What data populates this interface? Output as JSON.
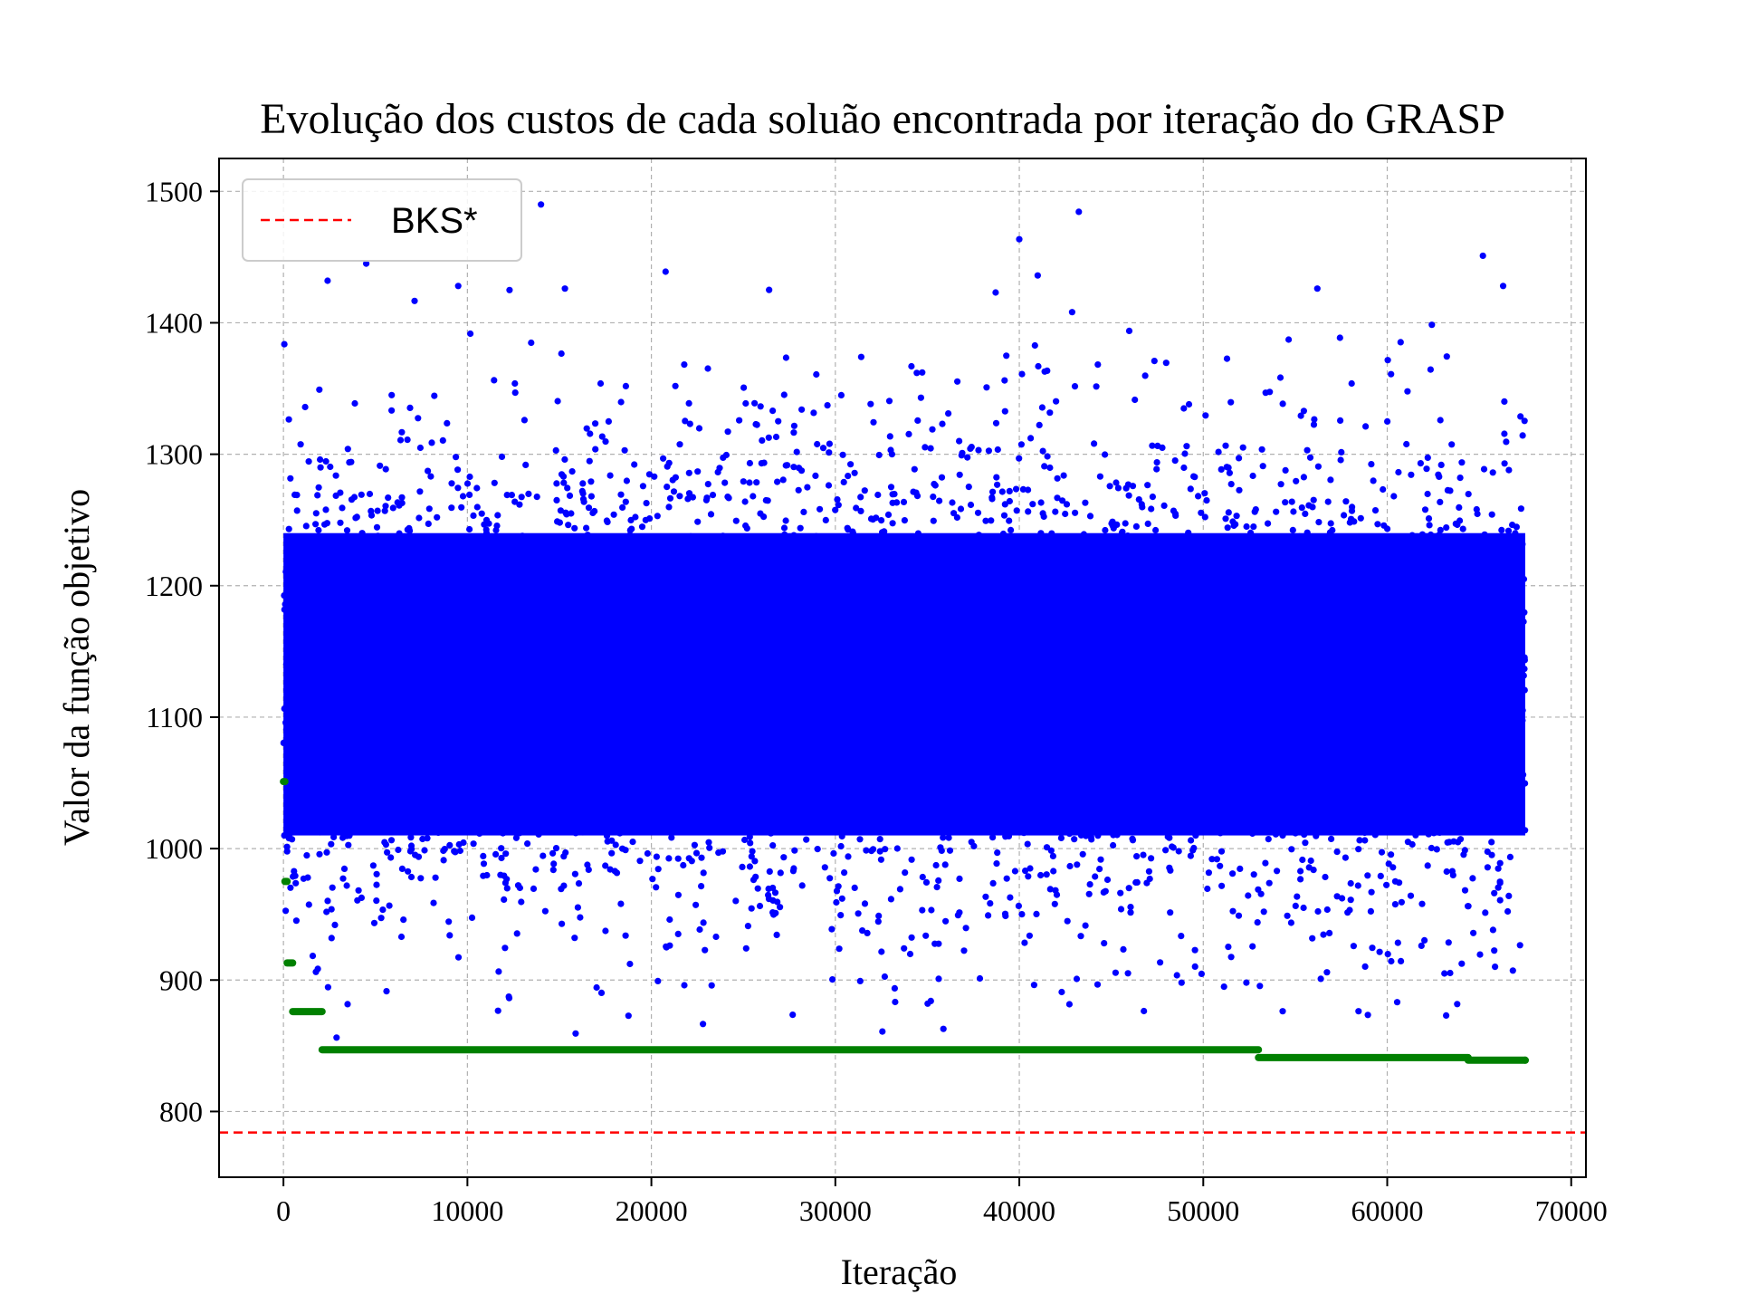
{
  "chart_data": {
    "type": "scatter",
    "title": "Evolução dos custos de cada soluão encontrada por iteração do GRASP",
    "xlabel": "Iteração",
    "ylabel": "Valor da função objetivo",
    "xlim": [
      -3500,
      70800
    ],
    "ylim": [
      750,
      1525
    ],
    "x_ticks": [
      0,
      10000,
      20000,
      30000,
      40000,
      50000,
      60000,
      70000
    ],
    "y_ticks": [
      800,
      900,
      1000,
      1100,
      1200,
      1300,
      1400,
      1500
    ],
    "grid": true,
    "legend": {
      "position": "top-left",
      "entries": [
        "BKS*"
      ]
    },
    "series": [
      {
        "kind": "scatter",
        "color": "#0000ff",
        "x_range": [
          0,
          67500
        ],
        "dense_band": [
          1010,
          1240
        ],
        "extent": [
          855,
          1490
        ],
        "notable_points": [
          {
            "x": 14000,
            "y": 1490
          },
          {
            "x": 65200,
            "y": 1451
          },
          {
            "x": 4500,
            "y": 1445
          },
          {
            "x": 41000,
            "y": 1436
          },
          {
            "x": 9500,
            "y": 1428
          },
          {
            "x": 2400,
            "y": 1432
          },
          {
            "x": 15300,
            "y": 1426
          },
          {
            "x": 26400,
            "y": 1425
          },
          {
            "x": 56200,
            "y": 1426
          },
          {
            "x": 66300,
            "y": 1428
          }
        ]
      },
      {
        "kind": "best-so-far",
        "color": "#008000",
        "points": [
          {
            "x": 0,
            "y": 1051
          },
          {
            "x": 80,
            "y": 975
          },
          {
            "x": 200,
            "y": 913
          },
          {
            "x": 500,
            "y": 876
          },
          {
            "x": 2100,
            "y": 847
          },
          {
            "x": 53000,
            "y": 841
          },
          {
            "x": 64400,
            "y": 839
          },
          {
            "x": 67500,
            "y": 839
          }
        ]
      },
      {
        "name": "BKS*",
        "kind": "reference-line",
        "color": "#ff0000",
        "y": 784
      }
    ]
  }
}
